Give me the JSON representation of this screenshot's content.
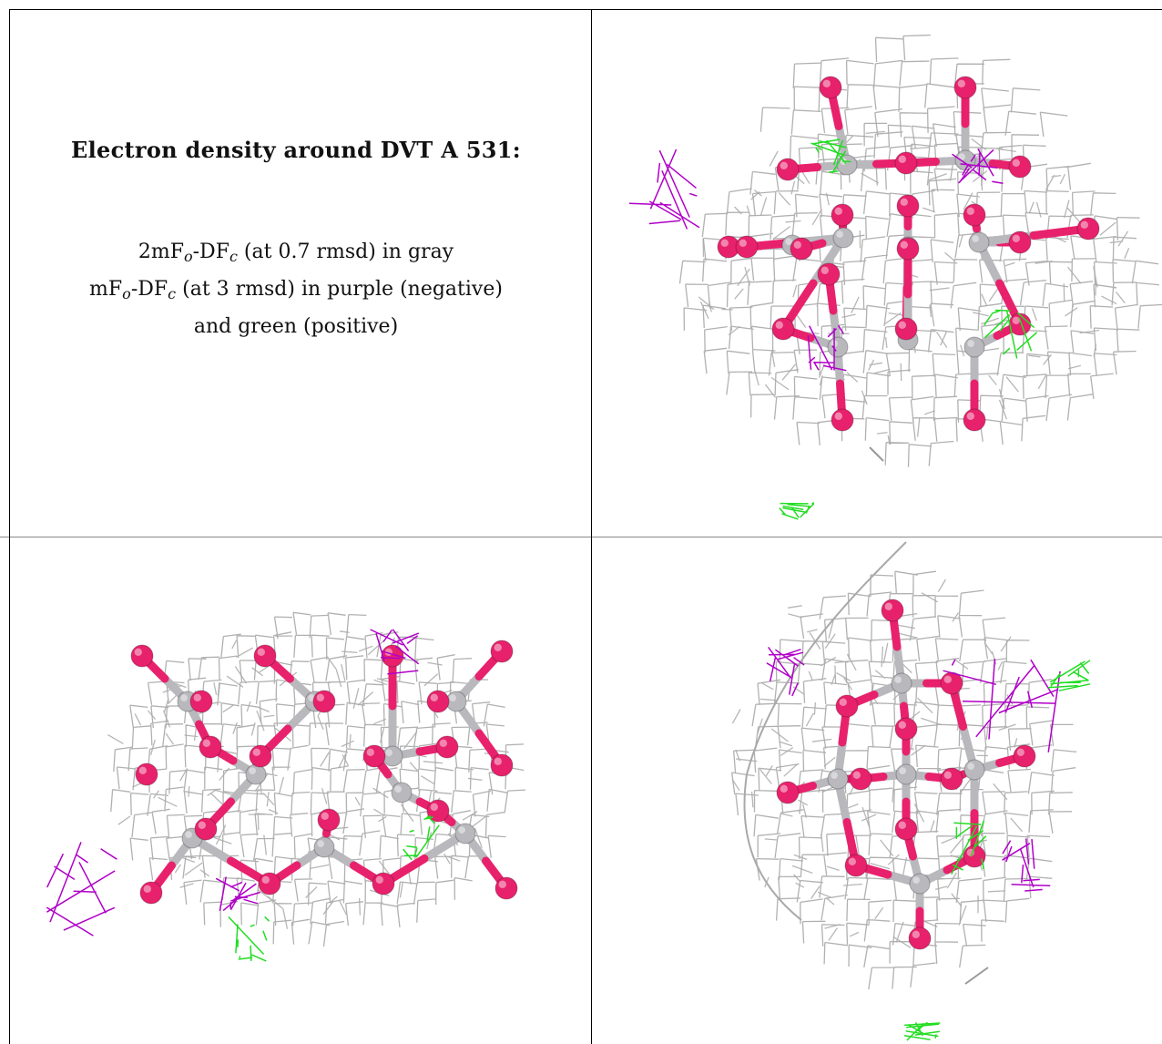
{
  "caption": {
    "title": "Electron density around DVT A 531:",
    "line1_prefix": "2mF",
    "line1_sub_o": "o",
    "line1_mid": "-DF",
    "line1_sub_c": "c",
    "line1_suffix": " (at 0.7 rmsd) in gray",
    "line2_prefix": "mF",
    "line2_sub_o": "o",
    "line2_mid": "-DF",
    "line2_sub_c": "c",
    "line2_suffix": " (at 3 rmsd) in purple (negative)",
    "line3": "and green (positive)"
  },
  "colors": {
    "mesh_gray": "#a9a9a9",
    "oxygen": "#e8216c",
    "metal": "#b8b8bd",
    "negative": "#b000c8",
    "positive": "#22dd22"
  },
  "panels": [
    {
      "name": "top-right",
      "view": "front"
    },
    {
      "name": "bottom-left",
      "view": "side"
    },
    {
      "name": "bottom-right",
      "view": "end"
    }
  ]
}
